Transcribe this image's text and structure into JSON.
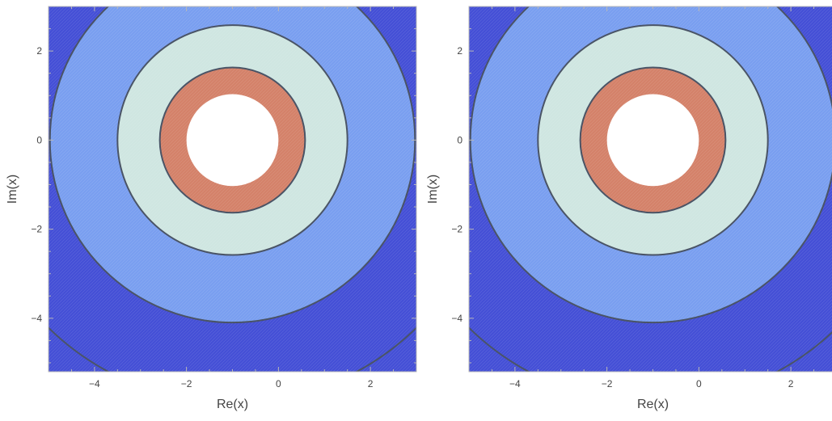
{
  "chart_data": [
    {
      "type": "contour",
      "xlabel": "Re(x)",
      "ylabel": "Im(x)",
      "xlim": [
        -5.0,
        3.0
      ],
      "ylim": [
        -5.2,
        3.0
      ],
      "x_ticks": [
        -4,
        -2,
        0,
        2
      ],
      "y_ticks": [
        -4,
        -2,
        0,
        2
      ],
      "x_tick_labels": [
        "−4",
        "−2",
        "0",
        "2"
      ],
      "y_tick_labels": [
        "−4",
        "−2",
        "0",
        "2"
      ],
      "center": [
        -1.0,
        0.0
      ],
      "hole_radius": 1.0,
      "contour_radii": [
        1.58,
        2.5,
        3.97
      ],
      "band_colors": [
        "#d4826a",
        "#cfe6e1",
        "#7a9ff0",
        "#4550d6"
      ],
      "hole_color": "#ffffff",
      "line_color": "#4a5466",
      "grid": false
    },
    {
      "type": "contour",
      "xlabel": "Re(x)",
      "ylabel": "Im(x)",
      "xlim": [
        -5.0,
        3.0
      ],
      "ylim": [
        -5.2,
        3.0
      ],
      "x_ticks": [
        -4,
        -2,
        0,
        2
      ],
      "y_ticks": [
        -4,
        -2,
        0,
        2
      ],
      "x_tick_labels": [
        "−4",
        "−2",
        "0",
        "2"
      ],
      "y_tick_labels": [
        "−4",
        "−2",
        "0",
        "2"
      ],
      "center": [
        -1.0,
        0.0
      ],
      "hole_radius": 1.0,
      "contour_radii": [
        1.58,
        2.5,
        3.97
      ],
      "band_colors": [
        "#d4826a",
        "#cfe6e1",
        "#7a9ff0",
        "#4550d6"
      ],
      "hole_color": "#ffffff",
      "line_color": "#4a5466",
      "grid": false
    }
  ]
}
